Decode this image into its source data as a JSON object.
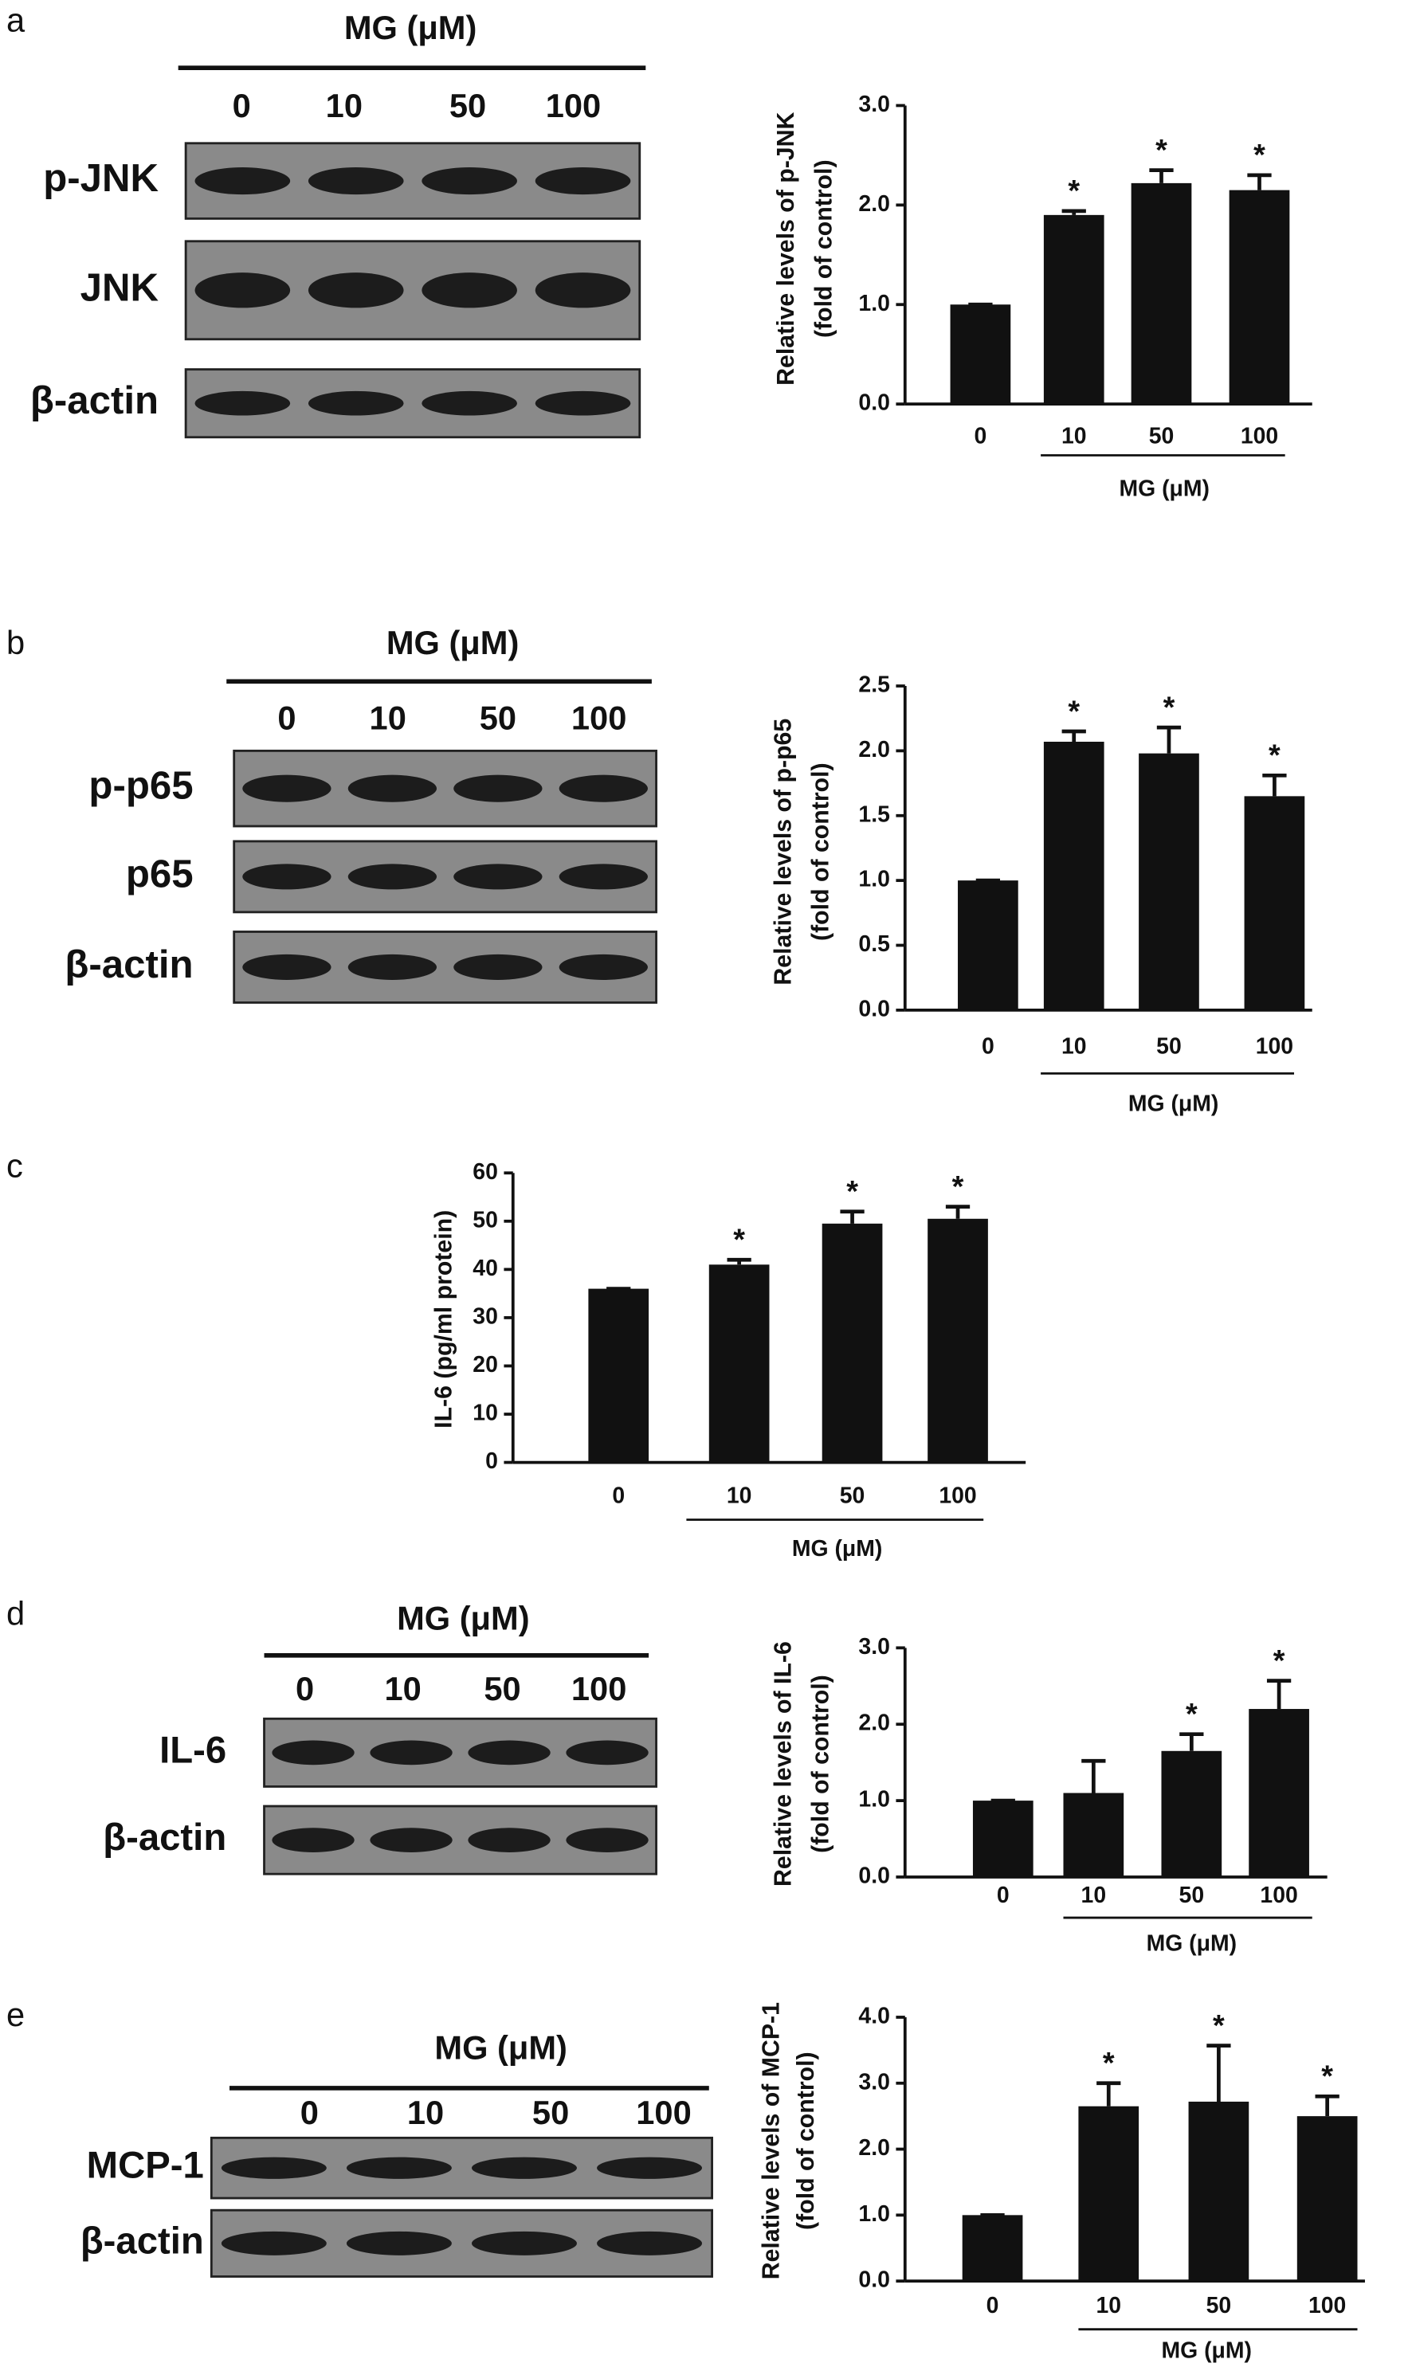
{
  "panel_labels": [
    "a",
    "b",
    "c",
    "d",
    "e"
  ],
  "blots": [
    {
      "header": "MG (μM)",
      "lanes": [
        "0",
        "10",
        "50",
        "100"
      ],
      "rows": [
        "p-JNK",
        "JNK",
        "β-actin"
      ]
    },
    {
      "header": "MG (μM)",
      "lanes": [
        "0",
        "10",
        "50",
        "100"
      ],
      "rows": [
        "p-p65",
        "p65",
        "β-actin"
      ]
    },
    {
      "header": "MG (μM)",
      "lanes": [
        "0",
        "10",
        "50",
        "100"
      ],
      "rows": [
        "IL-6",
        "β-actin"
      ]
    },
    {
      "header": "MG (μM)",
      "lanes": [
        "0",
        "10",
        "50",
        "100"
      ],
      "rows": [
        "MCP-1",
        "β-actin"
      ]
    }
  ],
  "chart_data": [
    {
      "type": "bar",
      "y_label": [
        "Relative levels of p-JNK",
        "(fold of control)"
      ],
      "x_label": "MG (μM)",
      "categories": [
        "0",
        "10",
        "50",
        "100"
      ],
      "values": [
        1.0,
        1.9,
        2.22,
        2.15
      ],
      "errors": [
        0,
        0.04,
        0.13,
        0.15
      ],
      "significance": [
        null,
        "*",
        "*",
        "*"
      ],
      "color": "#111111",
      "ylim": [
        0,
        3
      ],
      "yticks": [
        {
          "value": 0,
          "label": "0.0"
        },
        {
          "value": 1,
          "label": "1.0"
        },
        {
          "value": 2,
          "label": "2.0"
        },
        {
          "value": 3,
          "label": "3.0"
        }
      ]
    },
    {
      "type": "bar",
      "y_label": [
        "Relative levels of p-p65",
        "(fold of control)"
      ],
      "x_label": "MG (μM)",
      "categories": [
        "0",
        "10",
        "50",
        "100"
      ],
      "values": [
        1.0,
        2.07,
        1.98,
        1.65
      ],
      "errors": [
        0,
        0.08,
        0.2,
        0.16
      ],
      "significance": [
        null,
        "*",
        "*",
        "*"
      ],
      "color": "#111111",
      "ylim": [
        0,
        2.5
      ],
      "yticks": [
        {
          "value": 0,
          "label": "0.0"
        },
        0.5,
        {
          "value": 1,
          "label": "1.0"
        },
        1.5,
        {
          "value": 2,
          "label": "2.0"
        },
        2.5
      ]
    },
    {
      "type": "bar",
      "y_label": [
        "IL-6 (pg/ml protein)"
      ],
      "x_label": "MG (μM)",
      "categories": [
        "0",
        "10",
        "50",
        "100"
      ],
      "values": [
        36,
        41,
        49.5,
        50.5
      ],
      "errors": [
        0,
        1,
        2.5,
        2.5
      ],
      "significance": [
        null,
        "*",
        "*",
        "*"
      ],
      "color": "#111111",
      "ylim": [
        0,
        60
      ],
      "yticks": [
        0,
        10,
        20,
        30,
        40,
        50,
        60
      ]
    },
    {
      "type": "bar",
      "y_label": [
        "Relative levels of IL-6",
        "(fold of control)"
      ],
      "x_label": "MG (μM)",
      "categories": [
        "0",
        "10",
        "50",
        "100"
      ],
      "values": [
        1.0,
        1.1,
        1.65,
        2.2
      ],
      "errors": [
        0,
        0.42,
        0.22,
        0.37
      ],
      "significance": [
        null,
        null,
        "*",
        "*"
      ],
      "color": "#111111",
      "ylim": [
        0,
        3
      ],
      "yticks": [
        {
          "value": 0,
          "label": "0.0"
        },
        {
          "value": 1,
          "label": "1.0"
        },
        {
          "value": 2,
          "label": "2.0"
        },
        {
          "value": 3,
          "label": "3.0"
        }
      ]
    },
    {
      "type": "bar",
      "y_label": [
        "Relative levels of MCP-1",
        "(fold of control)"
      ],
      "x_label": "MG (μM)",
      "categories": [
        "0",
        "10",
        "50",
        "100"
      ],
      "values": [
        1.0,
        2.65,
        2.72,
        2.5
      ],
      "errors": [
        0,
        0.35,
        0.85,
        0.3
      ],
      "significance": [
        null,
        "*",
        "*",
        "*"
      ],
      "color": "#111111",
      "ylim": [
        0,
        4
      ],
      "yticks": [
        {
          "value": 0,
          "label": "0.0"
        },
        {
          "value": 1,
          "label": "1.0"
        },
        {
          "value": 2,
          "label": "2.0"
        },
        {
          "value": 3,
          "label": "3.0"
        },
        {
          "value": 4,
          "label": "4.0"
        }
      ]
    }
  ]
}
